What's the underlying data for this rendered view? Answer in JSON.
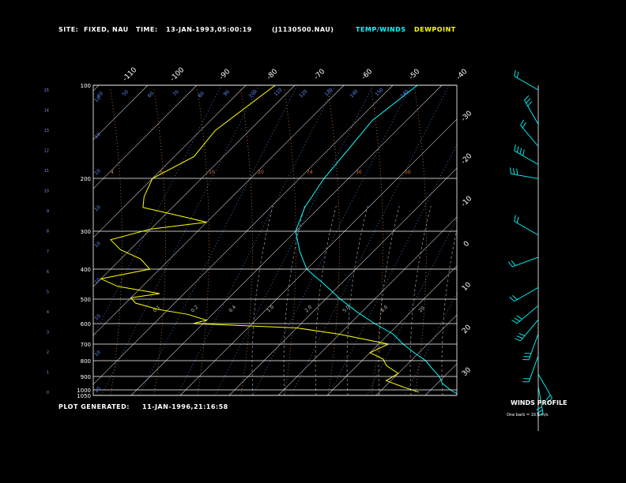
{
  "header": {
    "site_label": "SITE:",
    "site_value": "FIXED, NAU",
    "time_label": "TIME:",
    "time_value": "13-JAN-1993,05:00:19",
    "file": "(J1130500.NAU)",
    "legend_temp": "TEMP/WINDS",
    "legend_dew": "DEWPOINT"
  },
  "footer": {
    "generated_label": "PLOT GENERATED:",
    "generated_value": "11-JAN-1996,21:16:58"
  },
  "wind_panel": {
    "title": "WINDS PROFILE",
    "note": "One barb = 10.0 m/s"
  },
  "colors": {
    "temp": "#00ffff",
    "dew": "#ffff00",
    "frame": "#ffffff",
    "isotherm": "#d0d0d0",
    "dry_adiabat": "#e07a3a",
    "moist_adiabat": "#a0a0a0",
    "mixing_ratio": "#5f8fff",
    "left_scale": "#8888ff"
  },
  "chart_data": {
    "type": "line",
    "pressure_ticks": [
      "100",
      "200",
      "300",
      "400",
      "500",
      "600",
      "700",
      "800",
      "900",
      "1000",
      "1050"
    ],
    "temp_ticks_top": [
      "-110",
      "-100",
      "-90",
      "-80",
      "-70",
      "-60",
      "-50",
      "-40"
    ],
    "temp_ticks_right": [
      "-30",
      "-20",
      "-10",
      "0",
      "10",
      "20",
      "30"
    ],
    "height_ticks_km": [
      "15",
      "14",
      "13",
      "12",
      "11",
      "10",
      "9",
      "8",
      "7",
      "6",
      "5",
      "4",
      "3",
      "2",
      "1",
      "0"
    ],
    "isotherm_labels_top": [
      "60",
      "50",
      "60",
      "70",
      "80",
      "90",
      "100",
      "110",
      "120",
      "130",
      "140",
      "150",
      "140"
    ],
    "isotherm_labels_mid": [
      "4",
      "6",
      "10",
      "20",
      "74",
      "30",
      "50"
    ],
    "isotherm_labels_low": [
      "0.1",
      "0.2",
      "0.4",
      "1.0",
      "2.0",
      "5.0",
      "8.0",
      "20"
    ],
    "mixing_labels_left": [
      "10",
      "10",
      "10",
      "10",
      "10",
      "10",
      "10",
      "10",
      "10"
    ],
    "series": [
      {
        "name": "TEMP/WINDS",
        "points": [
          [
            100,
            -55
          ],
          [
            130,
            -57
          ],
          [
            160,
            -56
          ],
          [
            200,
            -55
          ],
          [
            250,
            -53
          ],
          [
            300,
            -50
          ],
          [
            350,
            -45
          ],
          [
            400,
            -40
          ],
          [
            450,
            -33
          ],
          [
            500,
            -27
          ],
          [
            550,
            -21
          ],
          [
            600,
            -15
          ],
          [
            650,
            -9
          ],
          [
            700,
            -5
          ],
          [
            750,
            -1
          ],
          [
            800,
            3
          ],
          [
            850,
            6
          ],
          [
            900,
            9
          ],
          [
            950,
            11
          ],
          [
            1000,
            14
          ],
          [
            1050,
            17
          ]
        ]
      },
      {
        "name": "DEWPOINT",
        "points": [
          [
            100,
            -84
          ],
          [
            140,
            -87
          ],
          [
            170,
            -86
          ],
          [
            200,
            -90
          ],
          [
            230,
            -88
          ],
          [
            250,
            -86
          ],
          [
            270,
            -75
          ],
          [
            280,
            -70
          ],
          [
            295,
            -80
          ],
          [
            320,
            -86
          ],
          [
            345,
            -82
          ],
          [
            370,
            -76
          ],
          [
            400,
            -72
          ],
          [
            430,
            -80
          ],
          [
            455,
            -75
          ],
          [
            480,
            -65
          ],
          [
            495,
            -70
          ],
          [
            515,
            -68
          ],
          [
            540,
            -62
          ],
          [
            560,
            -55
          ],
          [
            585,
            -50
          ],
          [
            600,
            -52
          ],
          [
            620,
            -30
          ],
          [
            650,
            -20
          ],
          [
            700,
            -8
          ],
          [
            750,
            -10
          ],
          [
            790,
            -6
          ],
          [
            830,
            -4
          ],
          [
            880,
            0
          ],
          [
            930,
            -1
          ],
          [
            980,
            4
          ],
          [
            1020,
            8
          ]
        ]
      }
    ]
  },
  "wind_data": {
    "type": "wind-profile",
    "barbs": [
      {
        "h": 15.0,
        "dir": 300,
        "spd": 20
      },
      {
        "h": 13.3,
        "dir": 330,
        "spd": 25
      },
      {
        "h": 12.2,
        "dir": 320,
        "spd": 20
      },
      {
        "h": 11.3,
        "dir": 300,
        "spd": 40
      },
      {
        "h": 10.6,
        "dir": 280,
        "spd": 30
      },
      {
        "h": 7.8,
        "dir": 300,
        "spd": 20
      },
      {
        "h": 6.7,
        "dir": 250,
        "spd": 15
      },
      {
        "h": 5.2,
        "dir": 240,
        "spd": 20
      },
      {
        "h": 4.3,
        "dir": 230,
        "spd": 25
      },
      {
        "h": 3.6,
        "dir": 220,
        "spd": 30
      },
      {
        "h": 2.9,
        "dir": 200,
        "spd": 25
      },
      {
        "h": 1.8,
        "dir": 200,
        "spd": 15
      },
      {
        "h": 0.9,
        "dir": 150,
        "spd": 20
      },
      {
        "h": 0.3,
        "dir": 170,
        "spd": 30
      }
    ]
  }
}
